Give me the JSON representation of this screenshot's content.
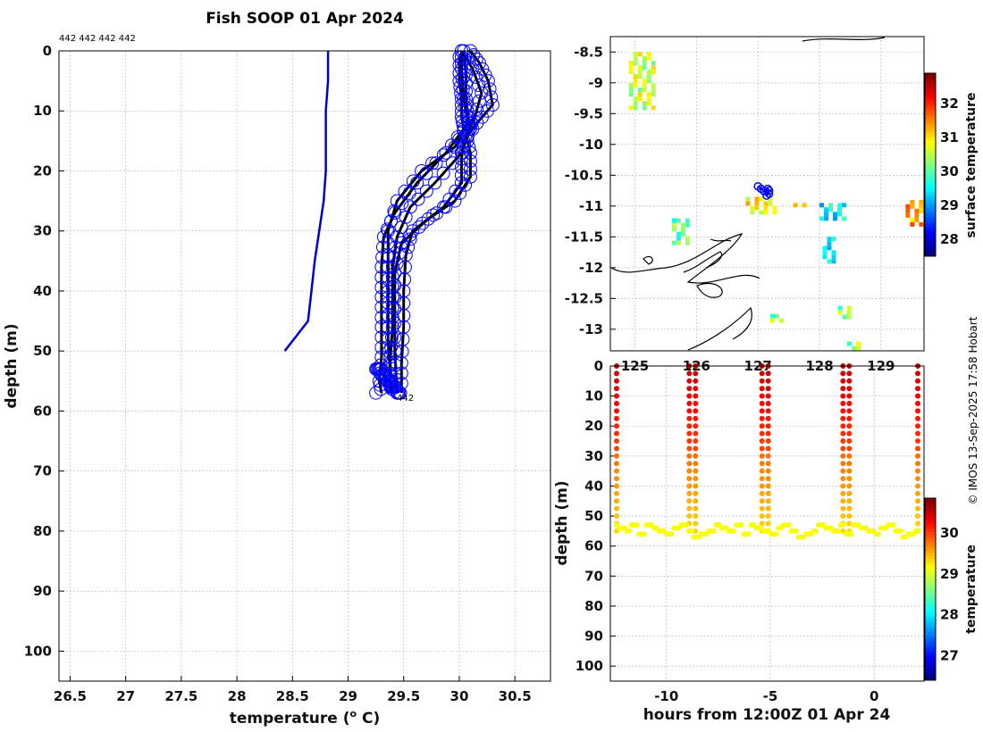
{
  "chart_data": [
    {
      "type": "line",
      "name": "temperature-depth-profiles",
      "title": "Fish SOOP 01 Apr 2024",
      "annotation_top": "442 442 442 442",
      "profile_label": "442",
      "xlabel": "temperature (",
      "xlabel_sup": "o",
      "xlabel_tail": " C)",
      "ylabel": "depth (m)",
      "xlim": [
        26.4,
        30.82
      ],
      "ylim": [
        105,
        0
      ],
      "xticks": [
        "26.5",
        "27",
        "27.5",
        "28",
        "28.5",
        "29",
        "29.5",
        "30",
        "30.5"
      ],
      "yticks": [
        "0",
        "10",
        "20",
        "30",
        "40",
        "50",
        "60",
        "70",
        "80",
        "90",
        "100"
      ],
      "series": [
        {
          "name": "climatology",
          "color": "#0000cc",
          "temperature": [
            28.82,
            28.82,
            28.8,
            28.8,
            28.8,
            28.78,
            28.74,
            28.7,
            28.67,
            28.64,
            28.43
          ],
          "depth": [
            0,
            5,
            10,
            15,
            20,
            25,
            30,
            35,
            40,
            45,
            50
          ]
        },
        {
          "name": "profile-1",
          "color": "#000000",
          "temperature": [
            30.0,
            30.0,
            30.02,
            30.02,
            30.04,
            29.88,
            29.62,
            29.42,
            29.32,
            29.3,
            29.3,
            29.3,
            29.3,
            29.28,
            29.3
          ],
          "depth": [
            1,
            5,
            8,
            11,
            13,
            17,
            22,
            27,
            31,
            36,
            41,
            46,
            51,
            55,
            57
          ]
        },
        {
          "name": "profile-2",
          "color": "#000000",
          "temperature": [
            30.04,
            30.06,
            30.06,
            30.08,
            30.1,
            30.02,
            29.78,
            29.56,
            29.44,
            29.4,
            29.4,
            29.4,
            29.38,
            29.38,
            29.4
          ],
          "depth": [
            0,
            4,
            8,
            11,
            13,
            17,
            22,
            26,
            31,
            36,
            41,
            46,
            51,
            55,
            57
          ]
        },
        {
          "name": "profile-3",
          "color": "#000000",
          "temperature": [
            30.1,
            30.18,
            30.26,
            30.3,
            30.16,
            30.04,
            30.02,
            30.02,
            29.86,
            29.58,
            29.52,
            29.5,
            29.5,
            29.48,
            29.48
          ],
          "depth": [
            0,
            2,
            5,
            9,
            12,
            15,
            18,
            22,
            26,
            30,
            34,
            40,
            46,
            52,
            57
          ]
        },
        {
          "name": "profile-4",
          "color": "#000000",
          "temperature": [
            30.02,
            30.02,
            30.04,
            30.08,
            29.96,
            29.66,
            29.44,
            29.36,
            29.36,
            29.36,
            29.36,
            29.38,
            29.38
          ],
          "depth": [
            0,
            3,
            8,
            12,
            16,
            20,
            25,
            30,
            36,
            42,
            48,
            54,
            57
          ]
        },
        {
          "name": "profile-5",
          "color": "#000000",
          "temperature": [
            30.02,
            30.12,
            30.2,
            30.14,
            30.06,
            30.1,
            30.1,
            29.96,
            29.72,
            29.48,
            29.42,
            29.42,
            29.42,
            29.44
          ],
          "depth": [
            0,
            3,
            7,
            11,
            14,
            17,
            21,
            25,
            28,
            32,
            37,
            43,
            50,
            57
          ]
        }
      ]
    },
    {
      "type": "heatmap",
      "name": "surface-temperature-map",
      "xticks": [
        "125",
        "126",
        "127",
        "128",
        "129"
      ],
      "yticks": [
        "-8.5",
        "-9",
        "-9.5",
        "-10",
        "-10.5",
        "-11",
        "-11.5",
        "-12",
        "-12.5",
        "-13"
      ],
      "xlim": [
        124.6,
        129.7
      ],
      "ylim": [
        -13.35,
        -8.25
      ],
      "colorbar_label": "surface temperature",
      "colorbar_ticks": [
        "28",
        "29",
        "30",
        "31",
        "32"
      ],
      "colorbar_range": [
        27.5,
        32.9
      ],
      "track": {
        "lon": [
          127.0,
          127.05,
          127.1,
          127.16,
          127.18,
          127.18,
          127.14
        ],
        "lat": [
          -10.68,
          -10.72,
          -10.76,
          -10.72,
          -10.75,
          -10.8,
          -10.83
        ]
      },
      "patches": [
        {
          "lon": [
            124.9,
            125.35
          ],
          "lat": [
            -9.45,
            -8.5
          ],
          "temp": 30.6
        },
        {
          "lon": [
            126.8,
            127.3
          ],
          "lat": [
            -11.15,
            -10.85
          ],
          "temp": 30.9
        },
        {
          "lon": [
            127.5,
            127.8
          ],
          "lat": [
            -11.05,
            -10.95
          ],
          "temp": 31.3
        },
        {
          "lon": [
            128.0,
            128.4
          ],
          "lat": [
            -11.25,
            -10.95
          ],
          "temp": 29.4
        },
        {
          "lon": [
            125.6,
            125.9
          ],
          "lat": [
            -11.6,
            -11.2
          ],
          "temp": 30.0
        },
        {
          "lon": [
            128.05,
            128.3
          ],
          "lat": [
            -11.95,
            -11.5
          ],
          "temp": 29.3
        },
        {
          "lon": [
            128.3,
            128.55
          ],
          "lat": [
            -12.85,
            -12.62
          ],
          "temp": 30.2
        },
        {
          "lon": [
            129.4,
            129.7
          ],
          "lat": [
            -11.3,
            -10.9
          ],
          "temp": 31.4
        },
        {
          "lon": [
            128.45,
            128.7
          ],
          "lat": [
            -13.35,
            -13.2
          ],
          "temp": 30.3
        },
        {
          "lon": [
            127.2,
            127.4
          ],
          "lat": [
            -12.9,
            -12.75
          ],
          "temp": 30.2
        }
      ]
    },
    {
      "type": "scatter",
      "name": "temperature-time-depth-section",
      "xlabel": "hours from 12:00Z 01 Apr 24",
      "ylabel": "depth (m)",
      "xticks": [
        "-10",
        "-5",
        "0"
      ],
      "yticks": [
        "0",
        "10",
        "20",
        "30",
        "40",
        "50",
        "60",
        "70",
        "80",
        "90",
        "100"
      ],
      "xlim": [
        -12.7,
        2.4
      ],
      "ylim": [
        105,
        0
      ],
      "colorbar_label": "temperature",
      "colorbar_ticks": [
        "27",
        "28",
        "29",
        "30"
      ],
      "colorbar_range": [
        26.4,
        30.85
      ],
      "casts_hours": [
        -12.4,
        -8.9,
        -8.6,
        -5.4,
        -5.1,
        -1.5,
        -1.2,
        2.1
      ],
      "bottom_depth_m": [
        53,
        54,
        55,
        53,
        56,
        53,
        54,
        55,
        56,
        54,
        53,
        55,
        57,
        56,
        55
      ]
    }
  ],
  "credit": "© IMOS 13-Sep-2025 17:58 Hobart",
  "colors": {
    "climatology": "#0000cc",
    "profile": "#000000",
    "marker": "#0000ff",
    "grid": "#b0b0b0"
  }
}
